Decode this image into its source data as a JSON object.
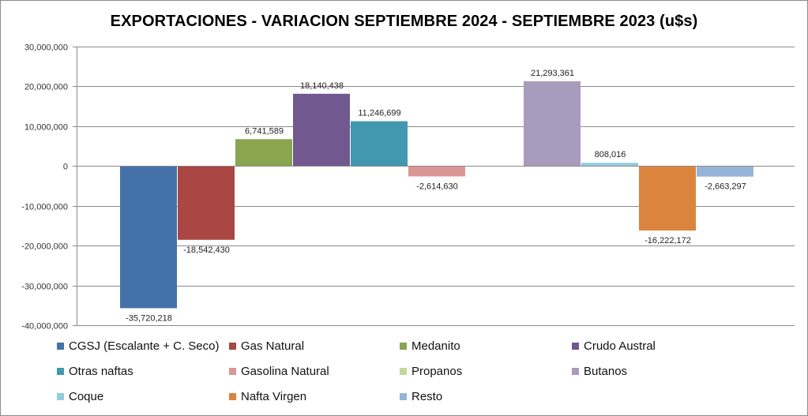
{
  "chart_data": {
    "type": "bar",
    "title": "EXPORTACIONES - VARIACION SEPTIEMBRE 2024 - SEPTIEMBRE 2023 (u$s)",
    "xlabel": "",
    "ylabel": "",
    "ylim": [
      -40000000,
      30000000
    ],
    "ytick_step": 10000000,
    "ytick_labels": [
      "30,000,000",
      "20,000,000",
      "10,000,000",
      "0",
      "-10,000,000",
      "-20,000,000",
      "-30,000,000",
      "-40,000,000"
    ],
    "grid": true,
    "legend_position": "bottom",
    "series": [
      {
        "name": "CGSJ (Escalante + C. Seco)",
        "value": -35720218,
        "label": "-35,720,218",
        "color": "#4472A8"
      },
      {
        "name": "Gas Natural",
        "value": -18542430,
        "label": "-18,542,430",
        "color": "#AA4643"
      },
      {
        "name": "Medanito",
        "value": 6741589,
        "label": "6,741,589",
        "color": "#89A54E"
      },
      {
        "name": "Crudo Austral",
        "value": 18140438,
        "label": "18,140,438",
        "color": "#71588F"
      },
      {
        "name": "Otras naftas",
        "value": 11246699,
        "label": "11,246,699",
        "color": "#4198AF"
      },
      {
        "name": "Gasolina Natural",
        "value": -2614630,
        "label": "-2,614,630",
        "color": "#D99694"
      },
      {
        "name": "Propanos",
        "value": 0,
        "label": "",
        "color": "#C3D69B"
      },
      {
        "name": "Butanos",
        "value": 21293361,
        "label": "21,293,361",
        "color": "#A99BBD"
      },
      {
        "name": "Coque",
        "value": 808016,
        "label": "808,016",
        "color": "#93CDDD"
      },
      {
        "name": "Nafta Virgen",
        "value": -16222172,
        "label": "-16,222,172",
        "color": "#DB843D"
      },
      {
        "name": "Resto",
        "value": -2663297,
        "label": "-2,663,297",
        "color": "#95B3D7"
      }
    ]
  }
}
